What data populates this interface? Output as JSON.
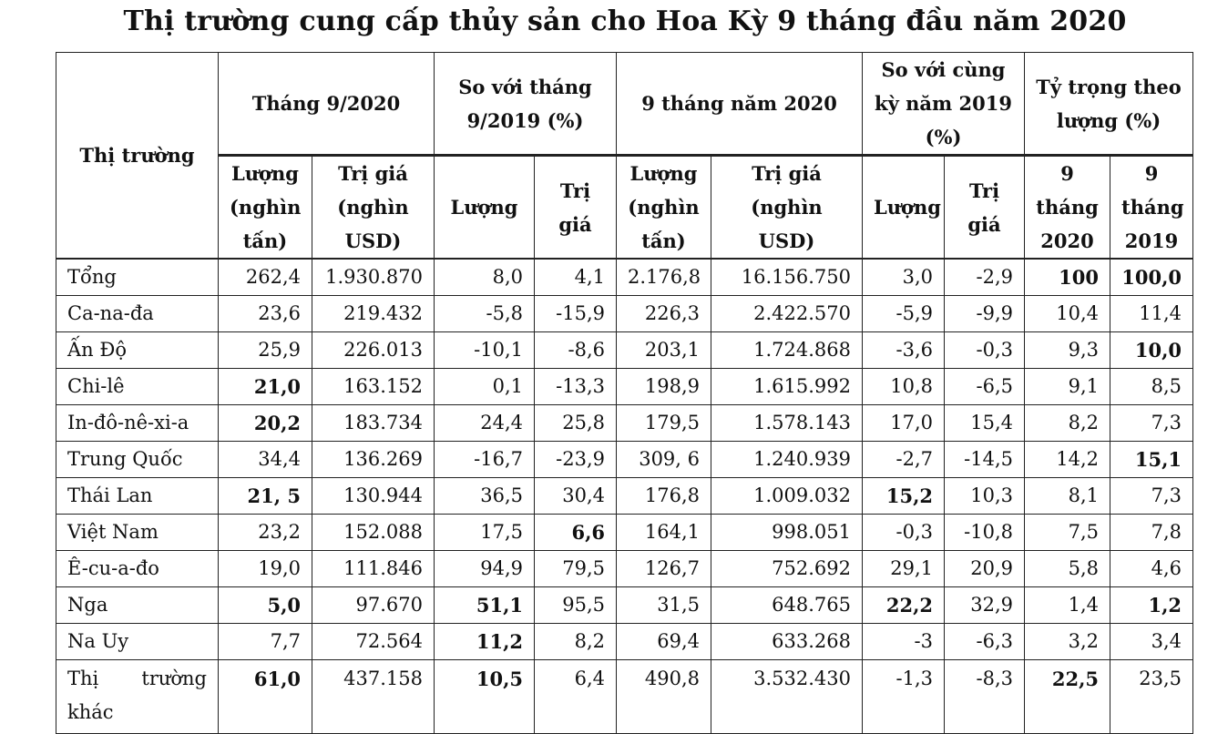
{
  "title": "Thị trường cung cấp thủy sản cho Hoa Kỳ 9 tháng đầu năm 2020",
  "header": {
    "market": "Thị trường",
    "month": "Tháng 9/2020",
    "vs_month": "So với tháng 9/2019 (%)",
    "nine_months": "9 tháng năm 2020",
    "vs_year": "So với cùng kỳ năm 2019 (%)",
    "share": "Tỷ trọng theo lượng (%)",
    "qty_kt": "Lượng (nghìn tấn)",
    "value_kusd": "Trị giá (nghìn USD)",
    "qty": "Lượng",
    "value": "Trị giá",
    "nine_2020": "9 tháng 2020",
    "nine_2019": "9 tháng 2019"
  },
  "rows": [
    {
      "market": "Tổng",
      "c": [
        "262,4",
        "1.930.870",
        "8,0",
        "4,1",
        "2.176,8",
        "16.156.750",
        "3,0",
        "-2,9",
        "100",
        "100,0"
      ]
    },
    {
      "market": "Ca-na-đa",
      "c": [
        "23,6",
        "219.432",
        "-5,8",
        "-15,9",
        "226,3",
        "2.422.570",
        "-5,9",
        "-9,9",
        "10,4",
        "11,4"
      ]
    },
    {
      "market": "Ấn Độ",
      "c": [
        "25,9",
        "226.013",
        "-10,1",
        "-8,6",
        "203,1",
        "1.724.868",
        "-3,6",
        "-0,3",
        "9,3",
        "10,0"
      ]
    },
    {
      "market": "Chi-lê",
      "c": [
        "21,0",
        "163.152",
        "0,1",
        "-13,3",
        "198,9",
        "1.615.992",
        "10,8",
        "-6,5",
        "9,1",
        "8,5"
      ]
    },
    {
      "market": "In-đô-nê-xi-a",
      "c": [
        "20,2",
        "183.734",
        "24,4",
        "25,8",
        "179,5",
        "1.578.143",
        "17,0",
        "15,4",
        "8,2",
        "7,3"
      ]
    },
    {
      "market": "Trung Quốc",
      "c": [
        "34,4",
        "136.269",
        "-16,7",
        "-23,9",
        "309, 6",
        "1.240.939",
        "-2,7",
        "-14,5",
        "14,2",
        "15,1"
      ]
    },
    {
      "market": "Thái Lan",
      "c": [
        "21, 5",
        "130.944",
        "36,5",
        "30,4",
        "176,8",
        "1.009.032",
        "15,2",
        "10,3",
        "8,1",
        "7,3"
      ]
    },
    {
      "market": "Việt Nam",
      "c": [
        "23,2",
        "152.088",
        "17,5",
        "6,6",
        "164,1",
        "998.051",
        "-0,3",
        "-10,8",
        "7,5",
        "7,8"
      ]
    },
    {
      "market": "Ê-cu-a-đo",
      "c": [
        "19,0",
        "111.846",
        "94,9",
        "79,5",
        "126,7",
        "752.692",
        "29,1",
        "20,9",
        "5,8",
        "4,6"
      ]
    },
    {
      "market": "Nga",
      "c": [
        "5,0",
        "97.670",
        "51,1",
        "95,5",
        "31,5",
        "648.765",
        "22,2",
        "32,9",
        "1,4",
        "1,2"
      ]
    },
    {
      "market": "Na Uy",
      "c": [
        "7,7",
        "72.564",
        "11,2",
        "8,2",
        "69,4",
        "633.268",
        "-3",
        "-6,3",
        "3,2",
        "3,4"
      ]
    }
  ],
  "last_row": {
    "market_a": "Thị",
    "market_b": "trường",
    "market_c": "khác",
    "c": [
      "61,0",
      "437.158",
      "10,5",
      "6,4",
      "490,8",
      "3.532.430",
      "-1,3",
      "-8,3",
      "22,5",
      "23,5"
    ]
  }
}
